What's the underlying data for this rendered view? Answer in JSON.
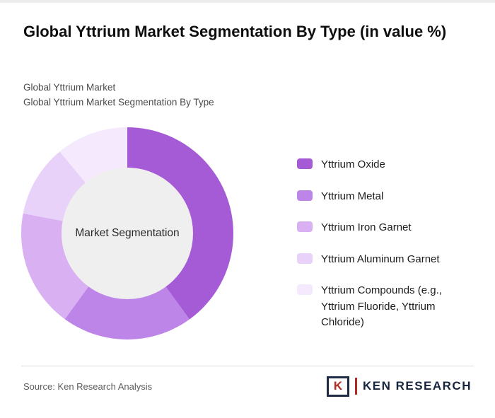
{
  "header": {
    "title": "Global Yttrium Market Segmentation By Type (in value %)",
    "subtitle1": "Global Yttrium Market",
    "subtitle2": "Global Yttrium Market Segmentation By Type"
  },
  "chart_data": {
    "type": "pie",
    "donut": true,
    "center_label": "Market Segmentation",
    "categories": [
      "Yttrium Oxide",
      "Yttrium Metal",
      "Yttrium Iron Garnet",
      "Yttrium Aluminum Garnet",
      "Yttrium Compounds (e.g., Yttrium Fluoride, Yttrium Chloride)"
    ],
    "values": [
      40,
      20,
      18,
      11,
      11
    ],
    "colors": [
      "#a55ad6",
      "#bd85e8",
      "#d9b0f2",
      "#e9d2f9",
      "#f4e9fd"
    ],
    "legend_position": "right",
    "start_angle_deg": 0,
    "hole_color": "#f0efef"
  },
  "footer": {
    "source": "Source: Ken Research Analysis",
    "brand": {
      "initial": "K",
      "name": "KEN RESEARCH"
    }
  }
}
